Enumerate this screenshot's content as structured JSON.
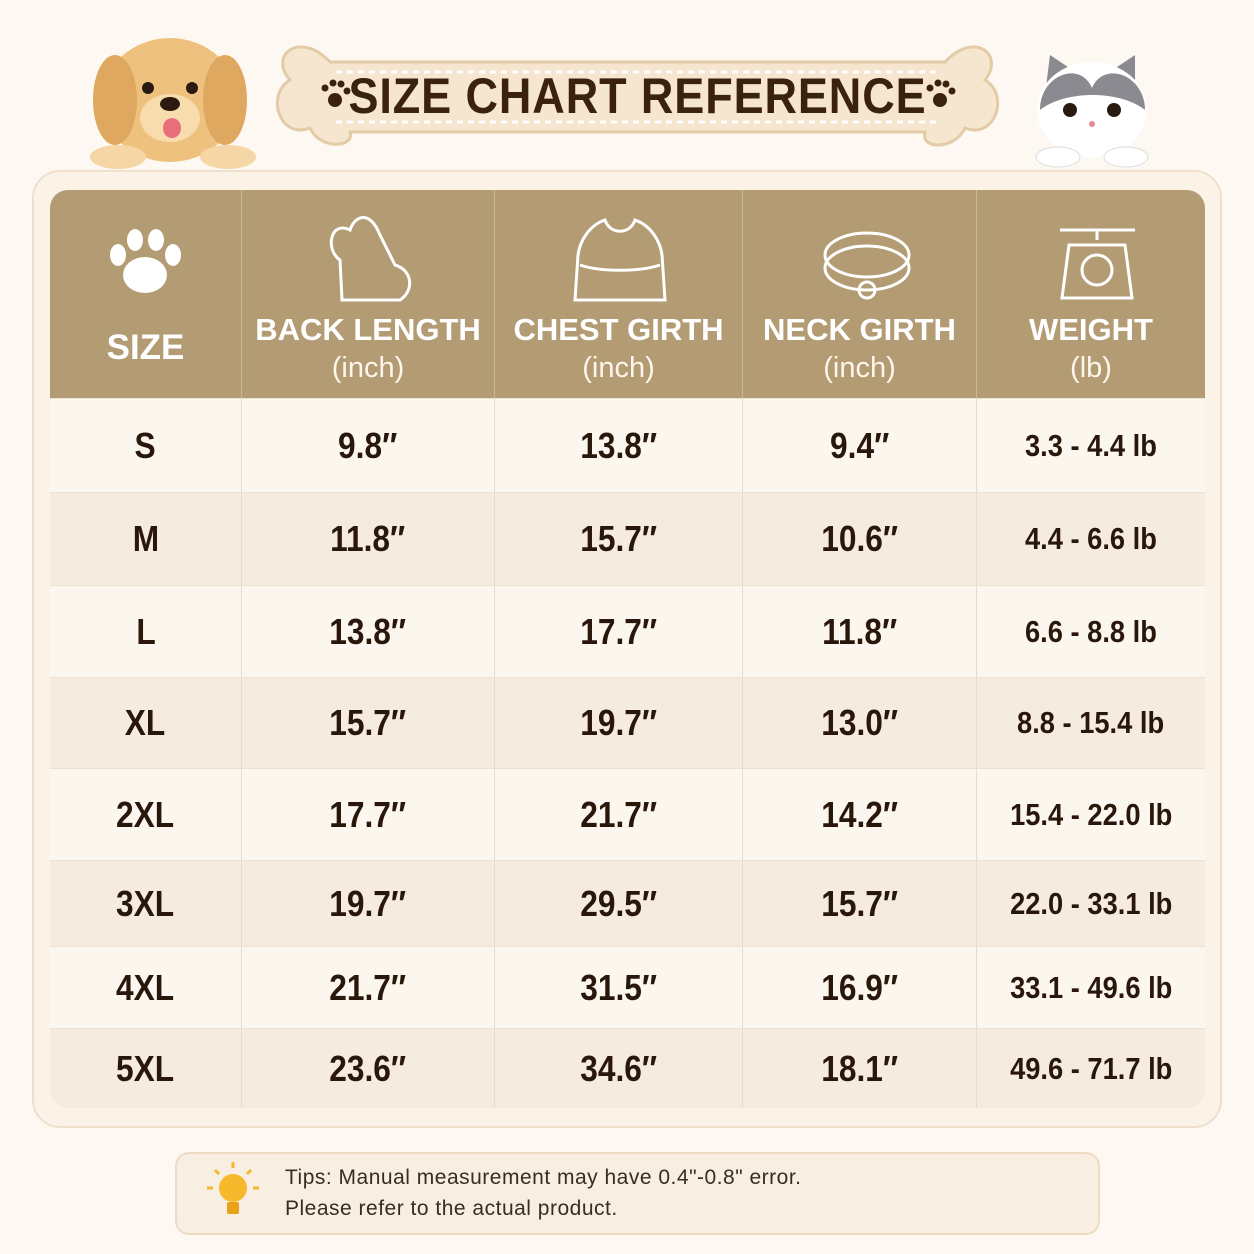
{
  "header": {
    "title": "SIZE CHART REFERENCE"
  },
  "table": {
    "headers": [
      {
        "title": "SIZE"
      },
      {
        "title": "BACK LENGTH",
        "unit": "(inch)"
      },
      {
        "title": "CHEST GIRTH",
        "unit": "(inch)"
      },
      {
        "title": "NECK GIRTH",
        "unit": "(inch)"
      },
      {
        "title": "WEIGHT",
        "unit": "(lb)"
      }
    ],
    "rows": [
      [
        "S",
        "9.8″",
        "13.8″",
        "9.4″",
        "3.3 - 4.4 lb"
      ],
      [
        "M",
        "11.8″",
        "15.7″",
        "10.6″",
        "4.4 - 6.6 lb"
      ],
      [
        "L",
        "13.8″",
        "17.7″",
        "11.8″",
        "6.6 - 8.8 lb"
      ],
      [
        "XL",
        "15.7″",
        "19.7″",
        "13.0″",
        "8.8 - 15.4 lb"
      ],
      [
        "2XL",
        "17.7″",
        "21.7″",
        "14.2″",
        "15.4 - 22.0 lb"
      ],
      [
        "3XL",
        "19.7″",
        "29.5″",
        "15.7″",
        "22.0 - 33.1 lb"
      ],
      [
        "4XL",
        "21.7″",
        "31.5″",
        "16.9″",
        "33.1 - 49.6 lb"
      ],
      [
        "5XL",
        "23.6″",
        "34.6″",
        "18.1″",
        "49.6 - 71.7 lb"
      ]
    ]
  },
  "tips": {
    "lines": [
      "Tips: Manual measurement may have 0.4\"-0.8\" error.",
      "Please refer to the actual product."
    ]
  }
}
